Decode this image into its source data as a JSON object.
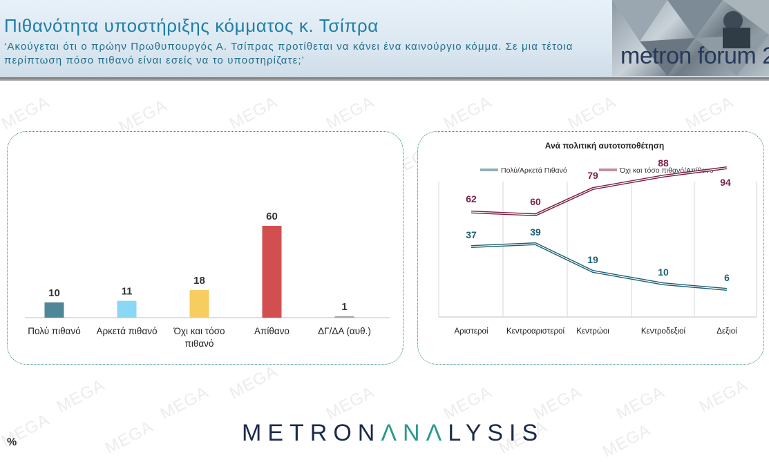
{
  "header": {
    "title": "Πιθανότητα υποστήριξης κόμματος κ. Τσίπρα",
    "question": "‘Ακούγεται ότι ο πρώην Πρωθυπουργός Α. Τσίπρας προτίθεται να κάνει ένα καινούργιο κόμμα. Σε μια τέτοια περίπτωση πόσο πιθανό είναι εσείς να το υποστηρίζατε;’",
    "logo_text": "metron forum 2"
  },
  "watermark_text": "MEGA",
  "footer": {
    "brand_part1": "METRON",
    "brand_part2": "ΛΝΛ",
    "brand_part3": "LYSIS",
    "unit": "%"
  },
  "colors": {
    "teal_line": "#1c5f74",
    "maroon_line": "#7a1f48",
    "bar1": "#4e8797",
    "bar2": "#8ad8f5",
    "bar3": "#f7cd5f",
    "bar4": "#d1504f",
    "bar5": "#a6a6a6"
  },
  "chart_data": [
    {
      "type": "bar",
      "categories": [
        "Πολύ πιθανό",
        "Αρκετά πιθανό",
        "Όχι και τόσο πιθανό",
        "Απίθανο",
        "ΔΓ/ΔΑ (αυθ.)"
      ],
      "values": [
        10,
        11,
        18,
        60,
        1
      ],
      "title": "",
      "xlabel": "",
      "ylabel": "",
      "ylim": [
        0,
        60
      ]
    },
    {
      "type": "line",
      "title": "Ανά πολιτική αυτοτοποθέτηση",
      "categories": [
        "Αριστεροί",
        "Κεντροαριστεροί",
        "Κεντρώοι",
        "Κεντροδεξιοί",
        "Δεξιοί"
      ],
      "series": [
        {
          "name": "Πολύ/Αρκετά Πιθανό",
          "values": [
            37,
            39,
            19,
            10,
            6
          ]
        },
        {
          "name": "Όχι και τόσο πιθανό/Απίθανο",
          "values": [
            62,
            60,
            79,
            88,
            94
          ]
        }
      ],
      "legend": "top",
      "ylim": [
        0,
        100
      ]
    }
  ]
}
